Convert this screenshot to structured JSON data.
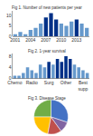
{
  "chart_data": [
    {
      "type": "bar",
      "title": "Fig 1. Number of new patients per year",
      "categories": [
        "2001",
        null,
        null,
        "2004",
        null,
        null,
        "2007",
        null,
        null,
        "2010",
        null,
        null,
        "2013",
        null,
        null
      ],
      "values": [
        1,
        2,
        1,
        3,
        4,
        6,
        9,
        11,
        8,
        6,
        5,
        7,
        8,
        6,
        4
      ],
      "colors": [
        "#6699CC",
        "#6699CC",
        "#6699CC",
        "#6699CC",
        "#6699CC",
        "#6699CC",
        "#003087",
        "#003087",
        "#003087",
        "#6699CC",
        "#6699CC",
        "#6699CC",
        "#003087",
        "#6699CC",
        "#6699CC"
      ],
      "ylim": [
        0,
        12
      ],
      "yticks": [
        0,
        5,
        10
      ],
      "grid": false
    },
    {
      "type": "bar",
      "title": "Fig 2. 1-year survival",
      "categories": [
        "Chemo",
        null,
        null,
        null,
        "Radio",
        null,
        null,
        null,
        "Surg",
        null,
        null,
        null,
        "Other",
        null,
        null,
        null,
        "Best\nsupp",
        null
      ],
      "values": [
        1,
        1,
        2,
        4,
        3,
        2,
        5,
        4,
        6,
        5,
        7,
        6,
        8,
        7,
        5,
        4,
        3,
        2
      ],
      "colors": [
        "#6699CC",
        "#6699CC",
        "#6699CC",
        "#6699CC",
        "#6699CC",
        "#6699CC",
        "#6699CC",
        "#6699CC",
        "#003087",
        "#6699CC",
        "#003087",
        "#003087",
        "#003087",
        "#003087",
        "#6699CC",
        "#6699CC",
        "#6699CC",
        "#6699CC"
      ],
      "ylim": [
        0,
        9
      ],
      "yticks": [
        0,
        4,
        8
      ],
      "grid": false
    },
    {
      "type": "pie",
      "title": "Fig 3. Disease Stage",
      "values": [
        30,
        25,
        22,
        13,
        10
      ],
      "colors": [
        "#4472C4",
        "#70AD47",
        "#FFC000",
        "#C0504D",
        "#8064A2"
      ]
    }
  ]
}
